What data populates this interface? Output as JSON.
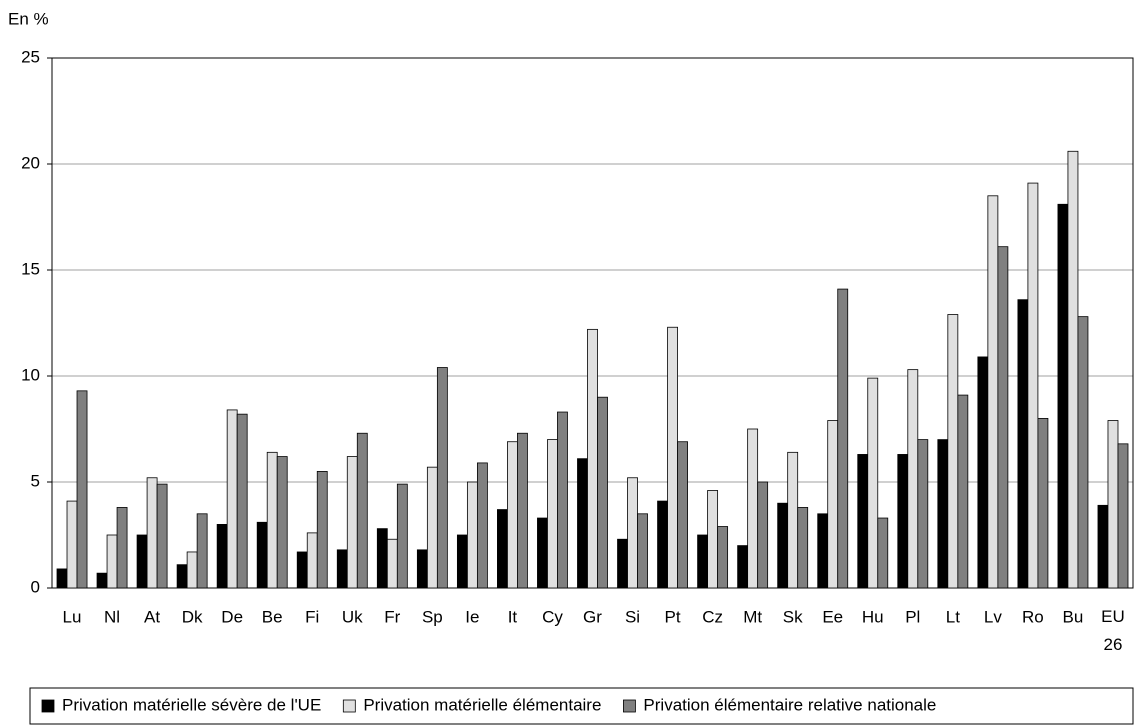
{
  "chart_data": {
    "type": "bar",
    "y_label": "En %",
    "categories": [
      "Lu",
      "Nl",
      "At",
      "Dk",
      "De",
      "Be",
      "Fi",
      "Uk",
      "Fr",
      "Sp",
      "Ie",
      "It",
      "Cy",
      "Gr",
      "Si",
      "Pt",
      "Cz",
      "Mt",
      "Sk",
      "Ee",
      "Hu",
      "Pl",
      "Lt",
      "Lv",
      "Ro",
      "Bu",
      "EU 26"
    ],
    "series": [
      {
        "name": "Privation matérielle sévère de l'UE",
        "color": "#000000",
        "values": [
          0.9,
          0.7,
          2.5,
          1.1,
          3.0,
          3.1,
          1.7,
          1.8,
          2.8,
          1.8,
          2.5,
          3.7,
          3.3,
          6.1,
          2.3,
          4.1,
          2.5,
          2.0,
          4.0,
          3.5,
          6.3,
          6.3,
          7.0,
          10.9,
          13.6,
          18.1,
          3.9
        ]
      },
      {
        "name": "Privation matérielle élémentaire",
        "color": "#e0e0e0",
        "values": [
          4.1,
          2.5,
          5.2,
          1.7,
          8.4,
          6.4,
          2.6,
          6.2,
          2.3,
          5.7,
          5.0,
          6.9,
          7.0,
          12.2,
          5.2,
          12.3,
          4.6,
          7.5,
          6.4,
          7.9,
          9.9,
          10.3,
          12.9,
          18.5,
          19.1,
          20.6,
          7.9
        ]
      },
      {
        "name": "Privation élémentaire relative nationale",
        "color": "#808080",
        "values": [
          9.3,
          3.8,
          4.9,
          3.5,
          8.2,
          6.2,
          5.5,
          7.3,
          4.9,
          10.4,
          5.9,
          7.3,
          8.3,
          9.0,
          3.5,
          6.9,
          2.9,
          5.0,
          3.8,
          14.1,
          3.3,
          7.0,
          9.1,
          16.1,
          8.0,
          12.8,
          6.8
        ]
      }
    ],
    "ylim": [
      0,
      25
    ],
    "yticks": [
      0,
      5,
      10,
      15,
      20,
      25
    ],
    "grid": true,
    "legend": "bottom"
  }
}
